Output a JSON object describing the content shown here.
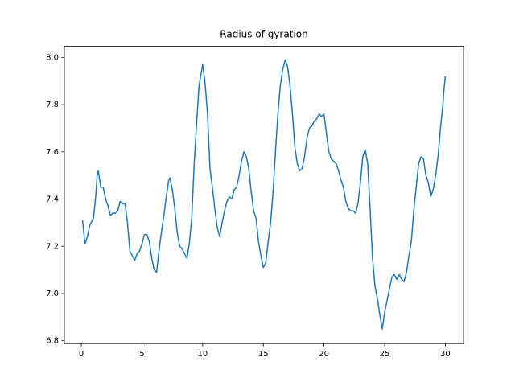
{
  "chart_data": {
    "type": "line",
    "title": "Radius of gyration",
    "x": [
      0.1,
      0.3,
      0.5,
      0.7,
      1.0,
      1.2,
      1.3,
      1.4,
      1.6,
      1.8,
      2.0,
      2.2,
      2.4,
      2.6,
      2.8,
      3.0,
      3.2,
      3.4,
      3.6,
      3.8,
      4.0,
      4.2,
      4.4,
      4.6,
      4.8,
      5.0,
      5.2,
      5.4,
      5.6,
      5.8,
      6.0,
      6.2,
      6.4,
      6.6,
      6.8,
      7.0,
      7.2,
      7.3,
      7.5,
      7.7,
      7.9,
      8.1,
      8.3,
      8.5,
      8.7,
      8.9,
      9.1,
      9.3,
      9.5,
      9.7,
      9.9,
      10.0,
      10.2,
      10.4,
      10.6,
      10.8,
      11.0,
      11.2,
      11.4,
      11.6,
      11.8,
      12.0,
      12.2,
      12.4,
      12.6,
      12.8,
      13.0,
      13.2,
      13.4,
      13.6,
      13.8,
      14.0,
      14.2,
      14.4,
      14.6,
      14.8,
      15.0,
      15.2,
      15.4,
      15.6,
      15.8,
      16.0,
      16.2,
      16.4,
      16.6,
      16.8,
      17.0,
      17.2,
      17.4,
      17.6,
      17.8,
      18.0,
      18.2,
      18.4,
      18.6,
      18.8,
      19.0,
      19.2,
      19.4,
      19.6,
      19.8,
      20.0,
      20.2,
      20.4,
      20.6,
      20.8,
      21.0,
      21.2,
      21.4,
      21.6,
      21.8,
      22.0,
      22.2,
      22.4,
      22.6,
      22.8,
      23.0,
      23.2,
      23.4,
      23.6,
      23.8,
      24.0,
      24.2,
      24.4,
      24.6,
      24.8,
      25.0,
      25.2,
      25.4,
      25.6,
      25.8,
      26.0,
      26.2,
      26.4,
      26.6,
      26.8,
      27.0,
      27.2,
      27.4,
      27.6,
      27.8,
      28.0,
      28.2,
      28.4,
      28.6,
      28.8,
      29.0,
      29.2,
      29.4,
      29.6,
      29.8,
      29.9,
      30.0
    ],
    "series": [
      {
        "color": "#1f77b4",
        "values": [
          7.31,
          7.21,
          7.24,
          7.29,
          7.32,
          7.42,
          7.5,
          7.52,
          7.45,
          7.45,
          7.4,
          7.37,
          7.33,
          7.34,
          7.34,
          7.35,
          7.39,
          7.38,
          7.38,
          7.3,
          7.18,
          7.16,
          7.14,
          7.17,
          7.18,
          7.21,
          7.25,
          7.25,
          7.22,
          7.15,
          7.1,
          7.09,
          7.18,
          7.26,
          7.33,
          7.41,
          7.48,
          7.49,
          7.44,
          7.36,
          7.26,
          7.2,
          7.19,
          7.17,
          7.15,
          7.21,
          7.32,
          7.55,
          7.72,
          7.88,
          7.94,
          7.97,
          7.89,
          7.76,
          7.53,
          7.45,
          7.36,
          7.28,
          7.24,
          7.3,
          7.35,
          7.39,
          7.41,
          7.4,
          7.44,
          7.45,
          7.5,
          7.56,
          7.6,
          7.58,
          7.53,
          7.43,
          7.35,
          7.32,
          7.22,
          7.16,
          7.11,
          7.13,
          7.22,
          7.3,
          7.43,
          7.6,
          7.76,
          7.88,
          7.95,
          7.99,
          7.96,
          7.88,
          7.76,
          7.62,
          7.55,
          7.52,
          7.53,
          7.58,
          7.66,
          7.7,
          7.71,
          7.73,
          7.74,
          7.76,
          7.75,
          7.76,
          7.68,
          7.6,
          7.57,
          7.56,
          7.55,
          7.52,
          7.48,
          7.45,
          7.39,
          7.36,
          7.35,
          7.35,
          7.34,
          7.38,
          7.47,
          7.58,
          7.61,
          7.55,
          7.36,
          7.15,
          7.03,
          6.98,
          6.91,
          6.85,
          6.92,
          6.97,
          7.02,
          7.07,
          7.08,
          7.06,
          7.08,
          7.06,
          7.05,
          7.09,
          7.16,
          7.22,
          7.35,
          7.45,
          7.55,
          7.58,
          7.57,
          7.5,
          7.47,
          7.41,
          7.44,
          7.5,
          7.58,
          7.7,
          7.8,
          7.87,
          7.92
        ]
      }
    ],
    "xlim": [
      -1.4,
      31.5
    ],
    "ylim": [
      6.788,
      8.047
    ],
    "xticks": [
      0,
      5,
      10,
      15,
      20,
      25,
      30
    ],
    "yticks": [
      6.8,
      {
        "value": 7,
        "label": "7.0"
      },
      7.2,
      7.4,
      7.6,
      7.8,
      {
        "value": 8,
        "label": "8.0"
      }
    ],
    "grid": false
  }
}
